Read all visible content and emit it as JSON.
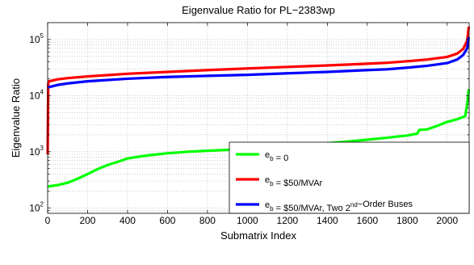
{
  "chart_data": {
    "type": "line",
    "title": "Eigenvalue Ratio for PL−2383wp",
    "xlabel": "Submatrix Index",
    "ylabel": "Eigenvalue Ratio",
    "xlim": [
      0,
      2110
    ],
    "ylim": [
      80,
      200000
    ],
    "yscale": "log",
    "grid": true,
    "legend_position": "bottom-right",
    "x_ticks": [
      0,
      200,
      400,
      600,
      800,
      1000,
      1200,
      1400,
      1600,
      1800,
      2000
    ],
    "y_ticks": [
      {
        "value": 100,
        "base": "10",
        "exp": "2"
      },
      {
        "value": 1000,
        "base": "10",
        "exp": "3"
      },
      {
        "value": 10000,
        "base": "10",
        "exp": "4"
      },
      {
        "value": 100000,
        "base": "10",
        "exp": "5"
      }
    ],
    "series": [
      {
        "legend_parts": [
          {
            "t": "e"
          },
          {
            "t": "b",
            "sub": true
          },
          {
            "t": " = 0"
          }
        ],
        "color": "#00ff00",
        "points": [
          [
            0,
            240
          ],
          [
            50,
            255
          ],
          [
            100,
            280
          ],
          [
            150,
            330
          ],
          [
            200,
            400
          ],
          [
            250,
            490
          ],
          [
            300,
            580
          ],
          [
            350,
            660
          ],
          [
            400,
            760
          ],
          [
            500,
            860
          ],
          [
            600,
            940
          ],
          [
            700,
            1000
          ],
          [
            800,
            1040
          ],
          [
            900,
            1080
          ],
          [
            1000,
            1140
          ],
          [
            1100,
            1190
          ],
          [
            1200,
            1260
          ],
          [
            1300,
            1330
          ],
          [
            1400,
            1420
          ],
          [
            1500,
            1520
          ],
          [
            1600,
            1640
          ],
          [
            1700,
            1780
          ],
          [
            1800,
            1950
          ],
          [
            1850,
            2100
          ],
          [
            1860,
            2450
          ],
          [
            1900,
            2500
          ],
          [
            1950,
            2900
          ],
          [
            2000,
            3400
          ],
          [
            2050,
            3800
          ],
          [
            2090,
            4300
          ],
          [
            2100,
            7000
          ],
          [
            2108,
            13000
          ]
        ]
      },
      {
        "legend_parts": [
          {
            "t": "e"
          },
          {
            "t": "b",
            "sub": true
          },
          {
            "t": " = $50/MVAr"
          }
        ],
        "color": "#ff0000",
        "points": [
          [
            0,
            900
          ],
          [
            3,
            16000
          ],
          [
            6,
            18000
          ],
          [
            50,
            19500
          ],
          [
            100,
            20500
          ],
          [
            200,
            22000
          ],
          [
            400,
            24500
          ],
          [
            600,
            26500
          ],
          [
            800,
            28500
          ],
          [
            1000,
            30500
          ],
          [
            1200,
            32500
          ],
          [
            1400,
            34500
          ],
          [
            1600,
            37000
          ],
          [
            1700,
            38500
          ],
          [
            1800,
            41000
          ],
          [
            1900,
            44000
          ],
          [
            2000,
            49000
          ],
          [
            2050,
            56000
          ],
          [
            2080,
            68000
          ],
          [
            2100,
            95000
          ],
          [
            2108,
            170000
          ]
        ]
      },
      {
        "legend_parts": [
          {
            "t": "e"
          },
          {
            "t": "b",
            "sub": true
          },
          {
            "t": " = $50/MVAr, Two 2"
          },
          {
            "t": "nd",
            "sup": true
          },
          {
            "t": "−Order Buses"
          }
        ],
        "color": "#0000ff",
        "points": [
          [
            0,
            14000
          ],
          [
            50,
            15500
          ],
          [
            100,
            16500
          ],
          [
            200,
            18000
          ],
          [
            400,
            20000
          ],
          [
            600,
            21500
          ],
          [
            800,
            22500
          ],
          [
            1000,
            23500
          ],
          [
            1200,
            25000
          ],
          [
            1400,
            26500
          ],
          [
            1600,
            28500
          ],
          [
            1700,
            29500
          ],
          [
            1800,
            31500
          ],
          [
            1900,
            34000
          ],
          [
            2000,
            38000
          ],
          [
            2050,
            44000
          ],
          [
            2080,
            53000
          ],
          [
            2100,
            70000
          ],
          [
            2108,
            110000
          ]
        ]
      }
    ]
  }
}
